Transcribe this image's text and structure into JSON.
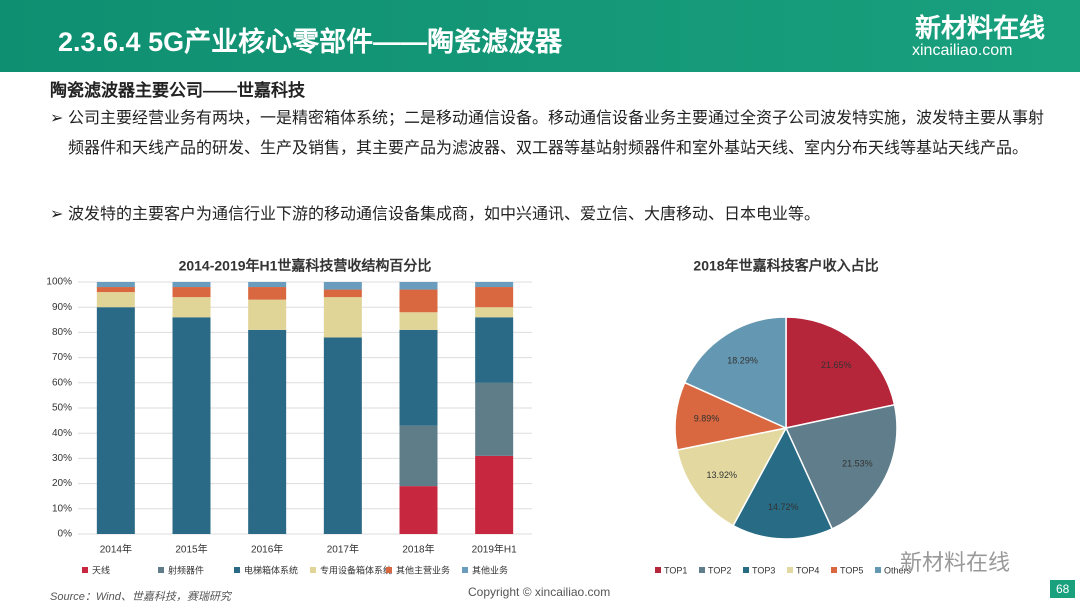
{
  "header": {
    "title": "2.3.6.4 5G产业核心零部件——陶瓷滤波器",
    "logo": "新材料在线",
    "logo_url": "xincailiao.com"
  },
  "subtitle": "陶瓷滤波器主要公司——世嘉科技",
  "bullets": [
    "公司主要经营业务有两块，一是精密箱体系统；二是移动通信设备。移动通信设备业务主要通过全资子公司波发特实施，波发特主要从事射频器件和天线产品的研发、生产及销售，其主要产品为滤波器、双工器等基站射频器件和室外基站天线、室内分布天线等基站天线产品。",
    "波发特的主要客户为通信行业下游的移动通信设备集成商，如中兴通讯、爱立信、大唐移动、日本电业等。"
  ],
  "footer": {
    "source": "Source：Wind、世嘉科技，赛瑞研究",
    "copyright": "Copyright © xincailiao.com",
    "page": "68",
    "wechat": "新材料在线"
  },
  "chart_data": [
    {
      "type": "stacked_bar",
      "title": "2014-2019年H1世嘉科技营收结构百分比",
      "categories": [
        "2014年",
        "2015年",
        "2016年",
        "2017年",
        "2018年",
        "2019年H1"
      ],
      "series": [
        {
          "name": "天线",
          "color": "#c8283f",
          "values": [
            0,
            0,
            0,
            0,
            19,
            31
          ]
        },
        {
          "name": "射频器件",
          "color": "#5f7d89",
          "values": [
            0,
            0,
            0,
            0,
            24,
            29
          ]
        },
        {
          "name": "电梯箱体系统",
          "color": "#2a6a86",
          "values": [
            90,
            86,
            81,
            78,
            38,
            26
          ]
        },
        {
          "name": "专用设备箱体系统",
          "color": "#e0d497",
          "values": [
            6,
            8,
            12,
            16,
            7,
            4
          ]
        },
        {
          "name": "其他主营业务",
          "color": "#d9673f",
          "values": [
            2,
            4,
            5,
            3,
            9,
            8
          ]
        },
        {
          "name": "其他业务",
          "color": "#6a9dbd",
          "values": [
            2,
            2,
            2,
            3,
            3,
            2
          ]
        }
      ],
      "ylim": [
        0,
        100
      ],
      "yticks": [
        {
          "value": 0,
          "label": "0%"
        },
        {
          "value": 10,
          "label": "10%"
        },
        {
          "value": 20,
          "label": "20%"
        },
        {
          "value": 30,
          "label": "30%"
        },
        {
          "value": 40,
          "label": "40%"
        },
        {
          "value": 50,
          "label": "50%"
        },
        {
          "value": 60,
          "label": "60%"
        },
        {
          "value": 70,
          "label": "70%"
        },
        {
          "value": 80,
          "label": "80%"
        },
        {
          "value": 90,
          "label": "90%"
        },
        {
          "value": 100,
          "label": "100%"
        }
      ],
      "grid": true,
      "legend": "bottom"
    },
    {
      "type": "pie",
      "title": "2018年世嘉科技客户收入占比",
      "categories": [
        "TOP1",
        "TOP2",
        "TOP3",
        "TOP4",
        "TOP5",
        "Others"
      ],
      "values": [
        21.65,
        21.53,
        14.72,
        13.92,
        9.89,
        18.29
      ],
      "value_labels": [
        "21.65%",
        "21.53%",
        "14.72%",
        "13.92%",
        "9.89%",
        "18.29%"
      ],
      "colors": [
        "#b5263b",
        "#5f7d8a",
        "#276b85",
        "#e3d9a0",
        "#d9673f",
        "#6497b1"
      ],
      "legend": "bottom"
    }
  ]
}
